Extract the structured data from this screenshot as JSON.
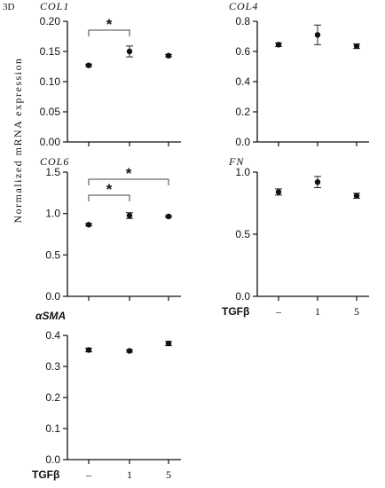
{
  "figure_label": "3D",
  "y_axis_label": "Normalized mRNA expression",
  "treatment_label": "TGFβ",
  "chart_data": [
    {
      "type": "scatter",
      "title": "COL1",
      "categories": [
        "–",
        "1",
        "5"
      ],
      "values": [
        0.127,
        0.15,
        0.143
      ],
      "errors": [
        0.002,
        0.009,
        0.002
      ],
      "ylim": [
        0,
        0.2
      ],
      "yticks": [
        "0.00",
        "0.05",
        "0.10",
        "0.15",
        "0.20"
      ],
      "show_xlabels": false,
      "significance": [
        {
          "from": 0,
          "to": 1,
          "label": "*"
        }
      ]
    },
    {
      "type": "scatter",
      "title": "COL4",
      "categories": [
        "–",
        "1",
        "5"
      ],
      "values": [
        0.645,
        0.71,
        0.635
      ],
      "errors": [
        0.012,
        0.065,
        0.015
      ],
      "ylim": [
        0,
        0.8
      ],
      "yticks": [
        "0.0",
        "0.2",
        "0.4",
        "0.6",
        "0.8"
      ],
      "show_xlabels": false,
      "significance": []
    },
    {
      "type": "scatter",
      "title": "COL6",
      "categories": [
        "–",
        "1",
        "5"
      ],
      "values": [
        0.865,
        0.975,
        0.965
      ],
      "errors": [
        0.015,
        0.035,
        0.01
      ],
      "ylim": [
        0,
        1.5
      ],
      "yticks": [
        "0.0",
        "0.5",
        "1.0",
        "1.5"
      ],
      "show_xlabels": false,
      "significance": [
        {
          "from": 0,
          "to": 1,
          "label": "*"
        },
        {
          "from": 0,
          "to": 2,
          "label": "*"
        }
      ]
    },
    {
      "type": "scatter",
      "title": "FN",
      "categories": [
        "–",
        "1",
        "5"
      ],
      "values": [
        0.84,
        0.92,
        0.81
      ],
      "errors": [
        0.025,
        0.045,
        0.02
      ],
      "ylim": [
        0,
        1.0
      ],
      "yticks": [
        "0.0",
        "0.5",
        "1.0"
      ],
      "show_xlabels": true,
      "significance": []
    },
    {
      "type": "scatter",
      "title": "αSMA",
      "categories": [
        "–",
        "1",
        "5"
      ],
      "values": [
        0.353,
        0.35,
        0.374
      ],
      "errors": [
        0.006,
        0.004,
        0.007
      ],
      "ylim": [
        0,
        0.4
      ],
      "yticks": [
        "0.0",
        "0.1",
        "0.2",
        "0.3",
        "0.4"
      ],
      "show_xlabels": true,
      "significance": []
    }
  ]
}
